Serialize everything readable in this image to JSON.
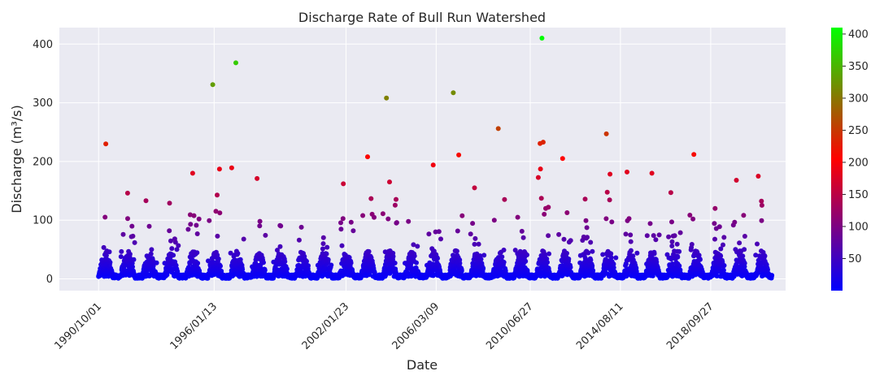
{
  "chart_data": {
    "type": "scatter",
    "title": "Discharge Rate of Bull Run Watershed",
    "xlabel": "Date",
    "ylabel": "Discharge (m³/s)",
    "x_axis": "date",
    "xlim": [
      "1988-12-15",
      "2022-03-01"
    ],
    "ylim": [
      -20,
      428
    ],
    "x_ticks": [
      "1990/10/01",
      "1996/01/13",
      "2002/01/23",
      "2006/03/09",
      "2010/06/27",
      "2014/08/11",
      "2018/09/27"
    ],
    "y_ticks": [
      0,
      100,
      200,
      300,
      400
    ],
    "grid": true,
    "background_color": "#eaeaf2",
    "colorbar": {
      "min": 0,
      "max": 410,
      "ticks": [
        50,
        100,
        150,
        200,
        250,
        300,
        350,
        400
      ],
      "colors": [
        "#0000ff",
        "#ff0000",
        "#00ff00"
      ]
    },
    "marker_size": 6,
    "seasonal_peaks": [
      {
        "season_start": "1990-10-01",
        "peak": 230
      },
      {
        "season_start": "1991-10-01",
        "peak": 146
      },
      {
        "season_start": "1992-10-01",
        "peak": 133
      },
      {
        "season_start": "1993-10-01",
        "peak": 129
      },
      {
        "season_start": "1994-10-01",
        "peak": 180
      },
      {
        "season_start": "1995-10-01",
        "peak": 331
      },
      {
        "season_start": "1996-10-01",
        "peak": 368
      },
      {
        "season_start": "1997-10-01",
        "peak": 171
      },
      {
        "season_start": "1998-10-01",
        "peak": 90
      },
      {
        "season_start": "1999-10-01",
        "peak": 88
      },
      {
        "season_start": "2000-10-01",
        "peak": 60
      },
      {
        "season_start": "2001-10-01",
        "peak": 162
      },
      {
        "season_start": "2002-10-01",
        "peak": 208
      },
      {
        "season_start": "2003-10-01",
        "peak": 308
      },
      {
        "season_start": "2004-10-01",
        "peak": 98
      },
      {
        "season_start": "2005-10-01",
        "peak": 194
      },
      {
        "season_start": "2006-10-01",
        "peak": 317
      },
      {
        "season_start": "2007-10-01",
        "peak": 155
      },
      {
        "season_start": "2008-10-01",
        "peak": 256
      },
      {
        "season_start": "2009-10-01",
        "peak": 105
      },
      {
        "season_start": "2010-10-01",
        "peak": 410
      },
      {
        "season_start": "2011-10-01",
        "peak": 205
      },
      {
        "season_start": "2012-10-01",
        "peak": 136
      },
      {
        "season_start": "2013-10-01",
        "peak": 247
      },
      {
        "season_start": "2014-10-01",
        "peak": 182
      },
      {
        "season_start": "2015-10-01",
        "peak": 180
      },
      {
        "season_start": "2016-10-01",
        "peak": 147
      },
      {
        "season_start": "2017-10-01",
        "peak": 212
      },
      {
        "season_start": "2018-10-01",
        "peak": 120
      },
      {
        "season_start": "2019-10-01",
        "peak": 168
      },
      {
        "season_start": "2020-10-01",
        "peak": 175
      }
    ],
    "data_start": "1990-10-01",
    "data_end": "2021-07-15"
  }
}
